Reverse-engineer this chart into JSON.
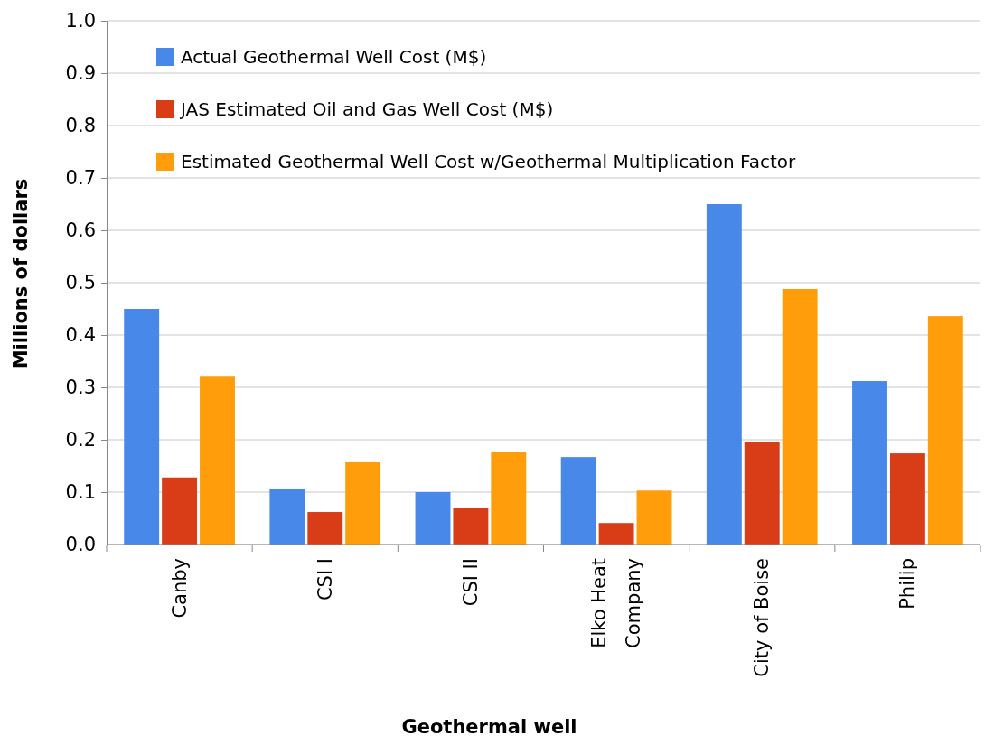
{
  "chart_data": {
    "type": "bar",
    "xlabel": "Geothermal well",
    "ylabel": "Millions of dollars",
    "categories": [
      "Canby",
      "CSI I",
      "CSI II",
      "Elko Heat Company",
      "City of Boise",
      "Philip"
    ],
    "series": [
      {
        "name": "Actual Geothermal Well Cost (M$)",
        "color": "#4788e8",
        "values": [
          0.45,
          0.107,
          0.1,
          0.167,
          0.65,
          0.312
        ]
      },
      {
        "name": "JAS Estimated Oil and Gas Well Cost (M$)",
        "color": "#d93d17",
        "values": [
          0.128,
          0.062,
          0.069,
          0.041,
          0.195,
          0.174
        ]
      },
      {
        "name": "Estimated Geothermal Well Cost w/Geothermal Multiplication Factor",
        "color": "#ff9d0a",
        "values": [
          0.322,
          0.157,
          0.176,
          0.103,
          0.488,
          0.436
        ]
      }
    ],
    "ylim": [
      0,
      1
    ],
    "yticks": [
      {
        "value": 0,
        "label": "0.0"
      },
      0.1,
      0.2,
      0.3,
      0.4,
      0.5,
      0.6,
      0.7,
      0.8,
      0.9,
      {
        "value": 1,
        "label": "1.0"
      }
    ],
    "grid": "y",
    "legend": "top left"
  }
}
